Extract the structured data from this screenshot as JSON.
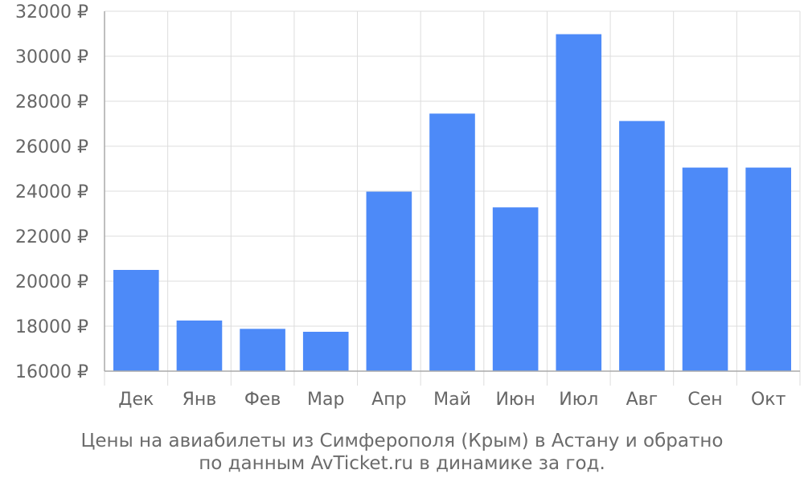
{
  "chart_data": {
    "type": "bar",
    "categories": [
      "Дек",
      "Янв",
      "Фев",
      "Мар",
      "Апр",
      "Май",
      "Июн",
      "Июл",
      "Авг",
      "Сен",
      "Окт"
    ],
    "values": [
      20500,
      18250,
      17880,
      17750,
      23980,
      27450,
      23280,
      30980,
      27120,
      25050,
      25050
    ],
    "ylim": [
      16000,
      32000
    ],
    "yticks": [
      16000,
      18000,
      20000,
      22000,
      24000,
      26000,
      28000,
      30000,
      32000
    ],
    "ytick_suffix": " ₽",
    "grid": true,
    "bar_color": "#4d8af8",
    "grid_color": "#dddddd",
    "axis_color": "#aaaaaa",
    "text_color": "#666666"
  },
  "caption": {
    "line1": "Цены на авиабилеты из Симферополя (Крым) в Астану и обратно",
    "line2": "по данным AvTicket.ru в динамике за год."
  }
}
